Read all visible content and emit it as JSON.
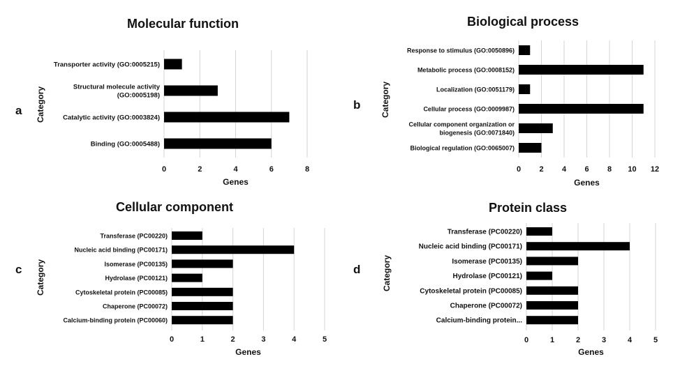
{
  "chart_data": [
    {
      "type": "bar",
      "orientation": "horizontal",
      "panel_label": "a",
      "title": "Molecular function",
      "xlabel": "Genes",
      "ylabel": "Category",
      "xlim": [
        0,
        8
      ],
      "xticks": [
        0,
        2,
        4,
        6,
        8
      ],
      "grid": true,
      "bar_color": "#000000",
      "categories": [
        [
          "Transporter activity (GO:0005215)"
        ],
        [
          "Structural molecule activity",
          "(GO:0005198)"
        ],
        [
          "Catalytic activity (GO:0003824)"
        ],
        [
          "Binding (GO:0005488)"
        ]
      ],
      "values": [
        1,
        3,
        7,
        6
      ]
    },
    {
      "type": "bar",
      "orientation": "horizontal",
      "panel_label": "b",
      "title": "Biological process",
      "xlabel": "Genes",
      "ylabel": "Category",
      "xlim": [
        0,
        12
      ],
      "xticks": [
        0,
        2,
        4,
        6,
        8,
        10,
        12
      ],
      "grid": true,
      "bar_color": "#000000",
      "categories": [
        [
          "Response to stimulus (GO:0050896)"
        ],
        [
          "Metabolic process (GO:0008152)"
        ],
        [
          "Localization (GO:0051179)"
        ],
        [
          "Cellular process (GO:0009987)"
        ],
        [
          "Cellular component organization or",
          "biogenesis (GO:0071840)"
        ],
        [
          "Biological regulation (GO:0065007)"
        ]
      ],
      "values": [
        1,
        11,
        1,
        11,
        3,
        2
      ]
    },
    {
      "type": "bar",
      "orientation": "horizontal",
      "panel_label": "c",
      "title": "Cellular component",
      "xlabel": "Genes",
      "ylabel": "Category",
      "xlim": [
        0,
        5
      ],
      "xticks": [
        0,
        1,
        2,
        3,
        4,
        5
      ],
      "grid": true,
      "bar_color": "#000000",
      "categories": [
        [
          "Transferase (PC00220)"
        ],
        [
          "Nucleic acid binding (PC00171)"
        ],
        [
          "Isomerase (PC00135)"
        ],
        [
          "Hydrolase (PC00121)"
        ],
        [
          "Cytoskeletal protein (PC00085)"
        ],
        [
          "Chaperone (PC00072)"
        ],
        [
          "Calcium-binding protein (PC00060)"
        ]
      ],
      "values": [
        1,
        4,
        2,
        1,
        2,
        2,
        2
      ]
    },
    {
      "type": "bar",
      "orientation": "horizontal",
      "panel_label": "d",
      "title": "Protein class",
      "xlabel": "Genes",
      "ylabel": "Category",
      "xlim": [
        0,
        5
      ],
      "xticks": [
        0,
        1,
        2,
        3,
        4,
        5
      ],
      "grid": true,
      "bar_color": "#000000",
      "categories": [
        [
          "Transferase (PC00220)"
        ],
        [
          "Nucleic acid binding (PC00171)"
        ],
        [
          "Isomerase (PC00135)"
        ],
        [
          "Hydrolase (PC00121)"
        ],
        [
          "Cytoskeletal protein (PC00085)"
        ],
        [
          "Chaperone (PC00072)"
        ],
        [
          "Calcium-binding protein..."
        ]
      ],
      "values": [
        1,
        4,
        2,
        1,
        2,
        2,
        2
      ]
    }
  ]
}
